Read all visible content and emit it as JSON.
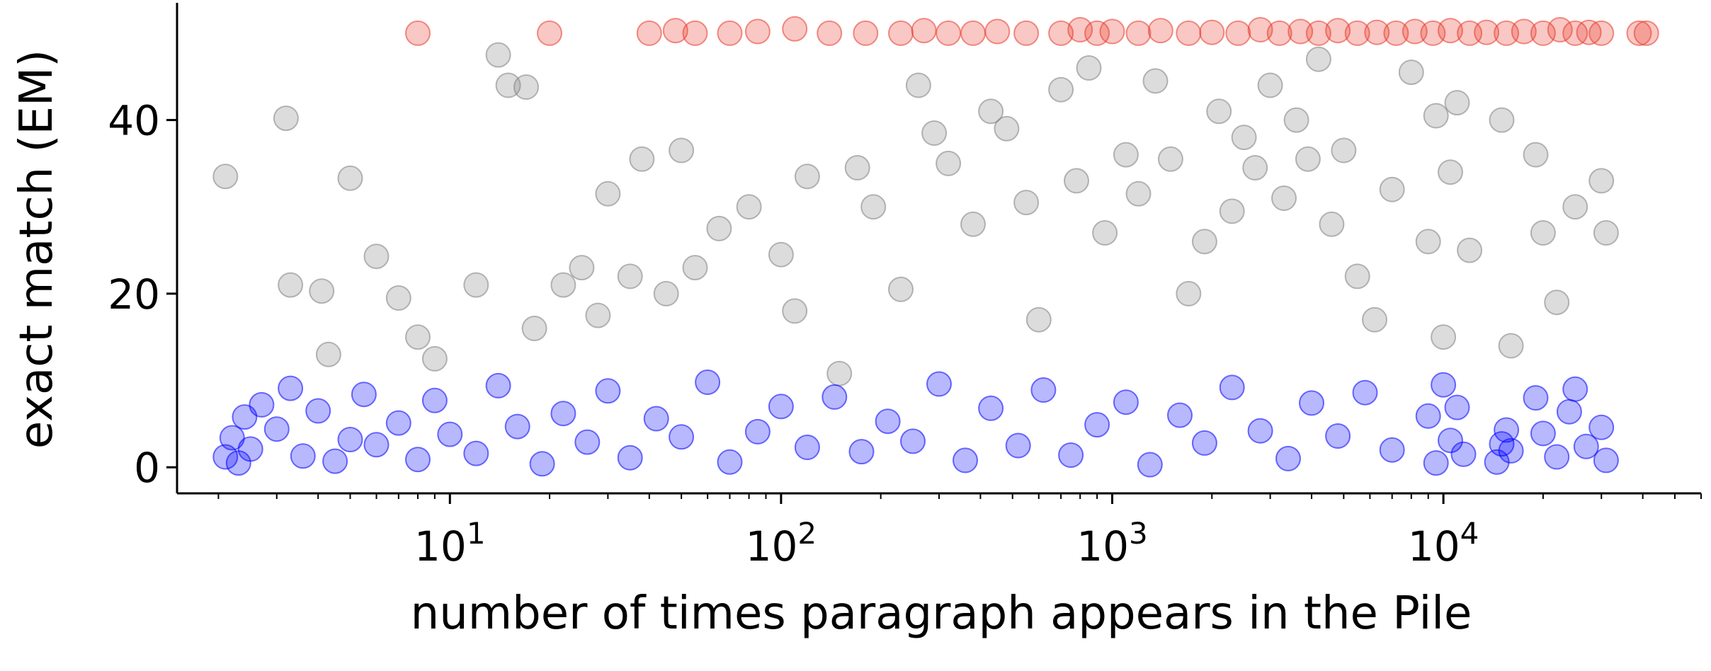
{
  "chart_data": {
    "type": "scatter",
    "title": "",
    "xlabel": "number of times paragraph appears in the Pile",
    "ylabel": "exact match (EM)",
    "x_scale": "log",
    "xlim": [
      1.5,
      60000
    ],
    "ylim": [
      -3,
      53.5
    ],
    "x_ticks": [
      {
        "value": 10,
        "base": "10",
        "exp": "1"
      },
      {
        "value": 100,
        "base": "10",
        "exp": "2"
      },
      {
        "value": 1000,
        "base": "10",
        "exp": "3"
      },
      {
        "value": 10000,
        "base": "10",
        "exp": "4"
      }
    ],
    "y_ticks": [
      {
        "value": 0,
        "label": "0"
      },
      {
        "value": 20,
        "label": "20"
      },
      {
        "value": 40,
        "label": "40"
      }
    ],
    "grid": false,
    "legend": "none",
    "marker": "circle",
    "series_colors": {
      "low_em": "#0000ff",
      "mid_em": "#808080",
      "high_em": "#e8392c"
    },
    "series": [
      {
        "values": [
          [
            2.1,
            1.2
          ],
          [
            2.2,
            3.4
          ],
          [
            2.3,
            0.5
          ],
          [
            2.4,
            5.8
          ],
          [
            2.5,
            2.1
          ],
          [
            2.7,
            7.2
          ],
          [
            3.0,
            4.4
          ],
          [
            3.3,
            9.1
          ],
          [
            3.6,
            1.3
          ],
          [
            4.0,
            6.5
          ],
          [
            4.5,
            0.7
          ],
          [
            5,
            3.2
          ],
          [
            5.5,
            8.4
          ],
          [
            6,
            2.6
          ],
          [
            7,
            5.1
          ],
          [
            8,
            0.9
          ],
          [
            9,
            7.7
          ],
          [
            10,
            3.8
          ],
          [
            12,
            1.6
          ],
          [
            14,
            9.4
          ],
          [
            16,
            4.7
          ],
          [
            19,
            0.4
          ],
          [
            22,
            6.2
          ],
          [
            26,
            2.9
          ],
          [
            30,
            8.8
          ],
          [
            35,
            1.1
          ],
          [
            42,
            5.6
          ],
          [
            50,
            3.5
          ],
          [
            60,
            9.8
          ],
          [
            70,
            0.6
          ],
          [
            85,
            4.1
          ],
          [
            100,
            7.0
          ],
          [
            120,
            2.3
          ],
          [
            145,
            8.1
          ],
          [
            175,
            1.8
          ],
          [
            210,
            5.3
          ],
          [
            250,
            3.0
          ],
          [
            300,
            9.6
          ],
          [
            360,
            0.8
          ],
          [
            430,
            6.8
          ],
          [
            520,
            2.5
          ],
          [
            620,
            8.9
          ],
          [
            750,
            1.4
          ],
          [
            900,
            4.9
          ],
          [
            1100,
            7.5
          ],
          [
            1300,
            0.3
          ],
          [
            1600,
            6.0
          ],
          [
            1900,
            2.8
          ],
          [
            2300,
            9.2
          ],
          [
            2800,
            4.2
          ],
          [
            3400,
            1.0
          ],
          [
            4000,
            7.4
          ],
          [
            4800,
            3.6
          ],
          [
            5800,
            8.6
          ],
          [
            7000,
            2.0
          ],
          [
            9000,
            5.9
          ],
          [
            9500,
            0.5
          ],
          [
            10000,
            9.5
          ],
          [
            10500,
            3.1
          ],
          [
            11000,
            6.9
          ],
          [
            11500,
            1.5
          ],
          [
            14500,
            0.6
          ],
          [
            15000,
            2.7
          ],
          [
            15500,
            4.3
          ],
          [
            16000,
            1.9
          ],
          [
            19000,
            8.0
          ],
          [
            20000,
            3.9
          ],
          [
            22000,
            1.2
          ],
          [
            24000,
            6.4
          ],
          [
            25000,
            9.0
          ],
          [
            27000,
            2.4
          ],
          [
            30000,
            4.6
          ],
          [
            31000,
            0.8
          ]
        ]
      },
      {
        "values": [
          [
            2.1,
            33.5
          ],
          [
            3.2,
            40.2
          ],
          [
            3.3,
            21
          ],
          [
            4.1,
            20.3
          ],
          [
            4.3,
            13
          ],
          [
            5.0,
            33.3
          ],
          [
            6,
            24.3
          ],
          [
            7,
            19.5
          ],
          [
            8,
            15
          ],
          [
            9,
            12.5
          ],
          [
            12,
            21
          ],
          [
            14,
            47.5
          ],
          [
            15,
            44
          ],
          [
            17,
            43.8
          ],
          [
            18,
            16
          ],
          [
            22,
            21
          ],
          [
            25,
            23
          ],
          [
            28,
            17.5
          ],
          [
            30,
            31.5
          ],
          [
            35,
            22
          ],
          [
            38,
            35.5
          ],
          [
            45,
            20
          ],
          [
            50,
            36.5
          ],
          [
            55,
            23
          ],
          [
            65,
            27.5
          ],
          [
            80,
            30
          ],
          [
            100,
            24.5
          ],
          [
            110,
            18
          ],
          [
            120,
            33.5
          ],
          [
            150,
            10.8
          ],
          [
            170,
            34.5
          ],
          [
            190,
            30
          ],
          [
            230,
            20.5
          ],
          [
            260,
            44
          ],
          [
            290,
            38.5
          ],
          [
            320,
            35
          ],
          [
            380,
            28
          ],
          [
            430,
            41
          ],
          [
            480,
            39
          ],
          [
            550,
            30.5
          ],
          [
            600,
            17
          ],
          [
            700,
            43.5
          ],
          [
            780,
            33
          ],
          [
            850,
            46
          ],
          [
            950,
            27
          ],
          [
            1100,
            36
          ],
          [
            1200,
            31.5
          ],
          [
            1350,
            44.5
          ],
          [
            1500,
            35.5
          ],
          [
            1700,
            20
          ],
          [
            1900,
            26
          ],
          [
            2100,
            41
          ],
          [
            2300,
            29.5
          ],
          [
            2500,
            38
          ],
          [
            2700,
            34.5
          ],
          [
            3000,
            44
          ],
          [
            3300,
            31
          ],
          [
            3600,
            40
          ],
          [
            3900,
            35.5
          ],
          [
            4200,
            47
          ],
          [
            4600,
            28
          ],
          [
            5000,
            36.5
          ],
          [
            5500,
            22
          ],
          [
            6200,
            17
          ],
          [
            7000,
            32
          ],
          [
            8000,
            45.5
          ],
          [
            9000,
            26
          ],
          [
            9500,
            40.5
          ],
          [
            10000,
            15
          ],
          [
            10500,
            34
          ],
          [
            11000,
            42
          ],
          [
            12000,
            25
          ],
          [
            15000,
            40
          ],
          [
            16000,
            14
          ],
          [
            19000,
            36
          ],
          [
            20000,
            27
          ],
          [
            22000,
            19
          ],
          [
            25000,
            30
          ],
          [
            30000,
            33
          ],
          [
            31000,
            27
          ]
        ]
      },
      {
        "values": [
          [
            8,
            50
          ],
          [
            20,
            50
          ],
          [
            40,
            50
          ],
          [
            48,
            50.3
          ],
          [
            55,
            50
          ],
          [
            70,
            50
          ],
          [
            85,
            50.2
          ],
          [
            110,
            50.5
          ],
          [
            140,
            50
          ],
          [
            180,
            50
          ],
          [
            230,
            50
          ],
          [
            270,
            50.3
          ],
          [
            320,
            50
          ],
          [
            380,
            50
          ],
          [
            450,
            50.2
          ],
          [
            550,
            50
          ],
          [
            700,
            50
          ],
          [
            800,
            50.4
          ],
          [
            900,
            50
          ],
          [
            1000,
            50.2
          ],
          [
            1200,
            50
          ],
          [
            1400,
            50.3
          ],
          [
            1700,
            50
          ],
          [
            2000,
            50.1
          ],
          [
            2400,
            50
          ],
          [
            2800,
            50.4
          ],
          [
            3200,
            50
          ],
          [
            3700,
            50.2
          ],
          [
            4200,
            50
          ],
          [
            4800,
            50.3
          ],
          [
            5500,
            50
          ],
          [
            6300,
            50.1
          ],
          [
            7200,
            50
          ],
          [
            8200,
            50.2
          ],
          [
            9300,
            50
          ],
          [
            10500,
            50.3
          ],
          [
            12000,
            50
          ],
          [
            13500,
            50.1
          ],
          [
            15500,
            50
          ],
          [
            17500,
            50.2
          ],
          [
            20000,
            50
          ],
          [
            22500,
            50.4
          ],
          [
            25000,
            50
          ],
          [
            27500,
            50.1
          ],
          [
            30000,
            50
          ],
          [
            39000,
            50
          ],
          [
            41000,
            50
          ]
        ]
      }
    ]
  }
}
